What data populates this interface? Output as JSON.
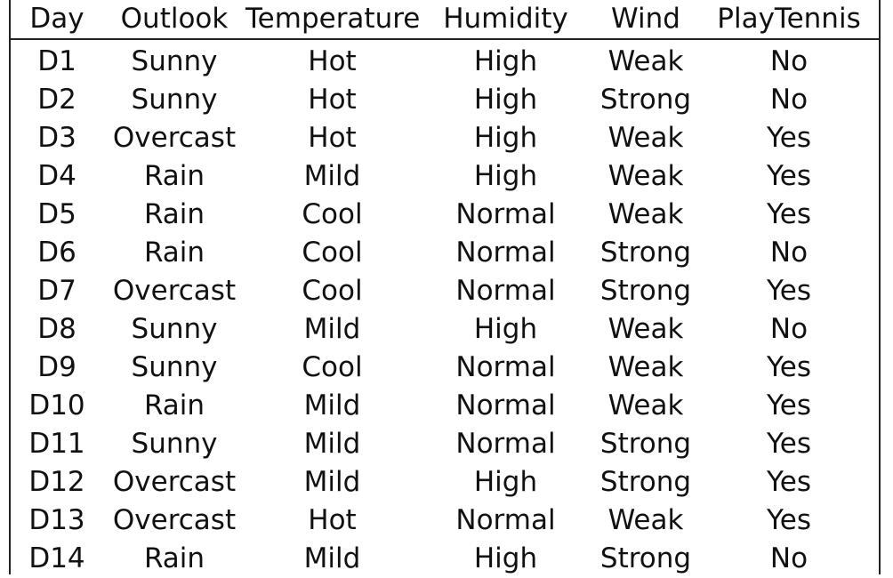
{
  "table": {
    "headers": [
      "Day",
      "Outlook",
      "Temperature",
      "Humidity",
      "Wind",
      "PlayTennis"
    ],
    "rows": [
      [
        "D1",
        "Sunny",
        "Hot",
        "High",
        "Weak",
        "No"
      ],
      [
        "D2",
        "Sunny",
        "Hot",
        "High",
        "Strong",
        "No"
      ],
      [
        "D3",
        "Overcast",
        "Hot",
        "High",
        "Weak",
        "Yes"
      ],
      [
        "D4",
        "Rain",
        "Mild",
        "High",
        "Weak",
        "Yes"
      ],
      [
        "D5",
        "Rain",
        "Cool",
        "Normal",
        "Weak",
        "Yes"
      ],
      [
        "D6",
        "Rain",
        "Cool",
        "Normal",
        "Strong",
        "No"
      ],
      [
        "D7",
        "Overcast",
        "Cool",
        "Normal",
        "Strong",
        "Yes"
      ],
      [
        "D8",
        "Sunny",
        "Mild",
        "High",
        "Weak",
        "No"
      ],
      [
        "D9",
        "Sunny",
        "Cool",
        "Normal",
        "Weak",
        "Yes"
      ],
      [
        "D10",
        "Rain",
        "Mild",
        "Normal",
        "Weak",
        "Yes"
      ],
      [
        "D11",
        "Sunny",
        "Mild",
        "Normal",
        "Strong",
        "Yes"
      ],
      [
        "D12",
        "Overcast",
        "Mild",
        "High",
        "Strong",
        "Yes"
      ],
      [
        "D13",
        "Overcast",
        "Hot",
        "Normal",
        "Weak",
        "Yes"
      ],
      [
        "D14",
        "Rain",
        "Mild",
        "High",
        "Strong",
        "No"
      ]
    ]
  }
}
